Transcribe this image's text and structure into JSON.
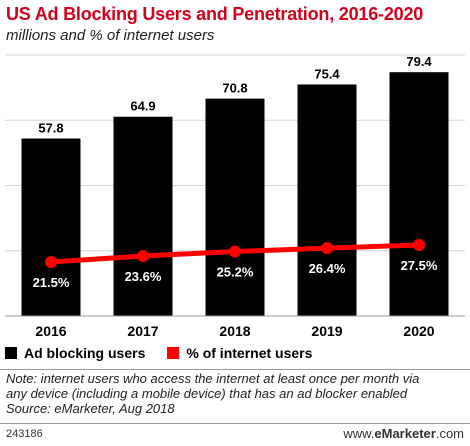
{
  "header": {
    "title": "US Ad Blocking Users and Penetration, 2016-2020",
    "subtitle": "millions and % of internet users"
  },
  "colors": {
    "title": "#d0021b",
    "bars": "#000000",
    "line": "#ff0000",
    "bar_label_text": "#000000",
    "point_label_text": "#ffffff"
  },
  "chart_data": {
    "type": "bar",
    "categories": [
      "2016",
      "2017",
      "2018",
      "2019",
      "2020"
    ],
    "series": [
      {
        "name": "Ad blocking users",
        "type": "bar",
        "values": [
          57.8,
          64.9,
          70.8,
          75.4,
          79.4
        ],
        "labels": [
          "57.8",
          "64.9",
          "70.8",
          "75.4",
          "79.4"
        ]
      },
      {
        "name": "% of internet users",
        "type": "line",
        "values": [
          21.5,
          23.6,
          25.2,
          26.4,
          27.5
        ],
        "labels": [
          "21.5%",
          "23.6%",
          "25.2%",
          "26.4%",
          "27.5%"
        ]
      }
    ],
    "ylim": [
      0,
      85
    ],
    "grid": true,
    "legend_position": "bottom-left"
  },
  "legend": [
    {
      "label": "Ad blocking users",
      "color": "#000000"
    },
    {
      "label": "% of internet users",
      "color": "#ff0000"
    }
  ],
  "note": {
    "line1": "Note: internet users who access the internet at least once per month via",
    "line2": "any device (including a mobile device) that has an ad blocker enabled",
    "line3": "Source: eMarketer, Aug 2018"
  },
  "footer": {
    "id": "243186",
    "brand_prefix": "www.",
    "brand_name": "eMarketer",
    "brand_suffix": ".com"
  }
}
